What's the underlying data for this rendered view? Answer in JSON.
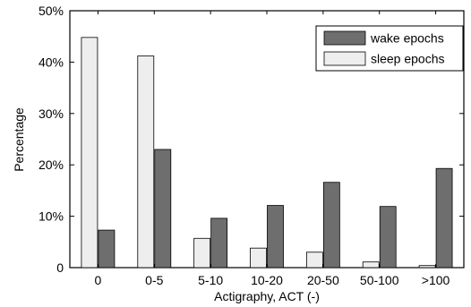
{
  "chart_data": {
    "type": "bar",
    "categories": [
      "0",
      "0-5",
      "5-10",
      "10-20",
      "20-50",
      "50-100",
      ">100"
    ],
    "series": [
      {
        "name": "sleep epochs",
        "values": [
          44.8,
          41.2,
          5.7,
          3.8,
          3.0,
          1.1,
          0.4
        ],
        "color": "#eeeeee"
      },
      {
        "name": "wake epochs",
        "values": [
          7.3,
          23.0,
          9.6,
          12.1,
          16.6,
          11.9,
          19.3
        ],
        "color": "#6e6e6e"
      }
    ],
    "y_ticks": [
      "0",
      "10%",
      "20%",
      "30%",
      "40%",
      "50%"
    ],
    "ylim": [
      0,
      50
    ],
    "xlabel": "Actigraphy, ACT (-)",
    "ylabel": "Percentage",
    "legend": {
      "placement": "top-right",
      "entries": [
        {
          "label": "wake epochs",
          "series": 1
        },
        {
          "label": "sleep epochs",
          "series": 0
        }
      ]
    },
    "grid": false
  }
}
